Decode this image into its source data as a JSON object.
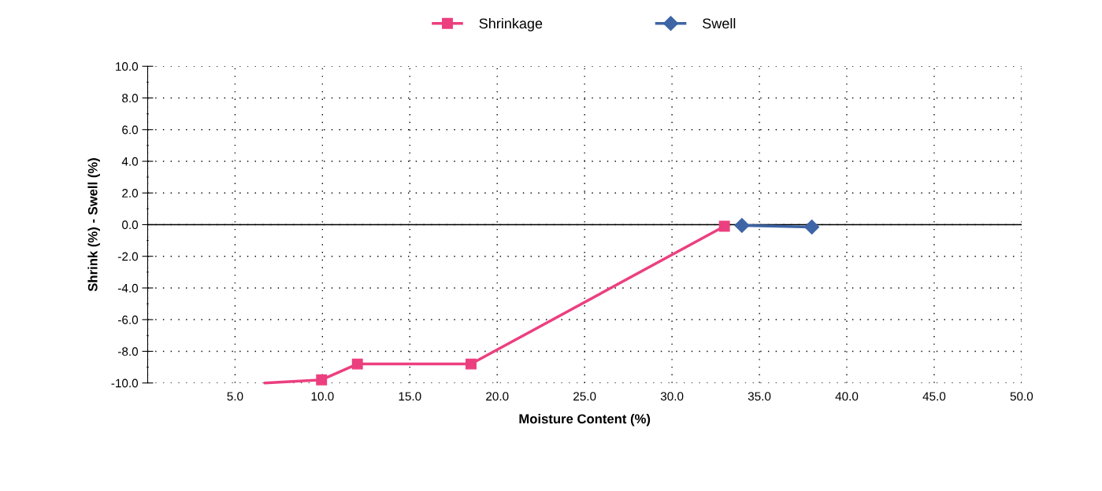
{
  "chart_data": {
    "type": "line",
    "xlabel": "Moisture Content (%)",
    "ylabel": "Shrink (%) - Swell (%)",
    "xlim": [
      0,
      50
    ],
    "xticks": [
      {
        "value": 0,
        "label": null
      },
      {
        "value": 5,
        "label": "5.0"
      },
      {
        "value": 10,
        "label": "10.0"
      },
      {
        "value": 15,
        "label": "15.0"
      },
      {
        "value": 20,
        "label": "20.0"
      },
      {
        "value": 25,
        "label": "25.0"
      },
      {
        "value": 30,
        "label": "30.0"
      },
      {
        "value": 35,
        "label": "35.0"
      },
      {
        "value": 40,
        "label": "40.0"
      },
      {
        "value": 45,
        "label": "45.0"
      },
      {
        "value": 50,
        "label": "50.0"
      }
    ],
    "ylim": [
      -10,
      10
    ],
    "yticks": [
      {
        "value": -10,
        "label": "-10.0"
      },
      {
        "value": -8,
        "label": "-8.0"
      },
      {
        "value": -6,
        "label": "-6.0"
      },
      {
        "value": -4,
        "label": "-4.0"
      },
      {
        "value": -2,
        "label": "-2.0"
      },
      {
        "value": 0,
        "label": "0.0"
      },
      {
        "value": 2,
        "label": "2.0"
      },
      {
        "value": 4,
        "label": "4.0"
      },
      {
        "value": 6,
        "label": "6.0"
      },
      {
        "value": 8,
        "label": "8.0"
      },
      {
        "value": 10,
        "label": "10.0"
      }
    ],
    "grid": true,
    "legend": "top",
    "line_style": "solid",
    "ref_lines": [
      {
        "axis": "y",
        "value": 0,
        "color": "#000000",
        "line_style": "solid"
      }
    ],
    "series": [
      {
        "color": "#ec3f7f",
        "x": [
          6.7,
          9.95
        ],
        "values": [
          -10.0,
          -9.8
        ]
      },
      {
        "name": "Shrinkage",
        "color": "#ec3f7f",
        "marker": "square",
        "x": [
          9.95,
          12.0,
          18.5,
          33.0
        ],
        "values": [
          -9.8,
          -8.8,
          -8.8,
          -0.1
        ]
      },
      {
        "name": "Swell",
        "color": "#3e65a6",
        "marker": "diamond",
        "x": [
          34.0,
          38.0
        ],
        "values": [
          -0.05,
          -0.15
        ]
      }
    ]
  }
}
